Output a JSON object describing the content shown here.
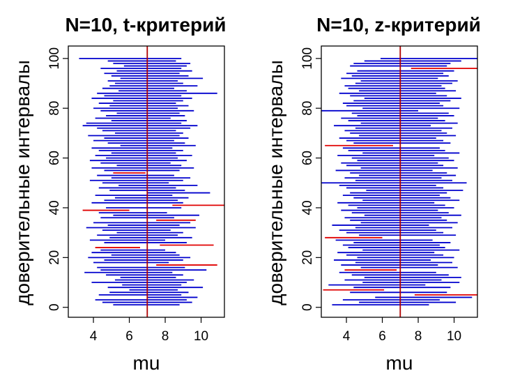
{
  "colors": {
    "covering": "#0000cd",
    "missing": "#e00000",
    "true_mean": "#b00000",
    "axis": "#000000"
  },
  "chart_data": [
    {
      "type": "interval",
      "title": "N=10, t-критерий",
      "xlabel": "mu",
      "ylabel": "доверительные интервалы",
      "xlim": [
        2.6,
        11.3
      ],
      "ylim": [
        -4,
        105
      ],
      "x_ticks": [
        4,
        6,
        8,
        10
      ],
      "y_ticks": [
        0,
        20,
        40,
        60,
        80,
        100
      ],
      "true_mean": 7,
      "grid": false,
      "intervals": [
        {
          "i": 1,
          "lo": 5.1,
          "hi": 8.8
        },
        {
          "i": 2,
          "lo": 4.5,
          "hi": 9.5
        },
        {
          "i": 3,
          "lo": 4.1,
          "hi": 9.2
        },
        {
          "i": 4,
          "lo": 7.0,
          "hi": 9.8
        },
        {
          "i": 5,
          "lo": 4.3,
          "hi": 8.9
        },
        {
          "i": 6,
          "lo": 4.9,
          "hi": 9.3
        },
        {
          "i": 7,
          "lo": 6.0,
          "hi": 8.7
        },
        {
          "i": 8,
          "lo": 4.8,
          "hi": 10.1
        },
        {
          "i": 9,
          "lo": 5.6,
          "hi": 8.9
        },
        {
          "i": 10,
          "lo": 3.9,
          "hi": 9.2
        },
        {
          "i": 11,
          "lo": 5.2,
          "hi": 9.6
        },
        {
          "i": 12,
          "lo": 5.5,
          "hi": 8.6
        },
        {
          "i": 13,
          "lo": 4.7,
          "hi": 9.0
        },
        {
          "i": 14,
          "lo": 3.5,
          "hi": 8.4
        },
        {
          "i": 15,
          "lo": 4.4,
          "hi": 10.3
        },
        {
          "i": 16,
          "lo": 4.2,
          "hi": 9.1
        },
        {
          "i": 17,
          "lo": 7.5,
          "hi": 10.9
        },
        {
          "i": 18,
          "lo": 4.0,
          "hi": 8.2
        },
        {
          "i": 19,
          "lo": 4.6,
          "hi": 9.0
        },
        {
          "i": 20,
          "lo": 3.7,
          "hi": 9.4
        },
        {
          "i": 21,
          "lo": 5.0,
          "hi": 8.8
        },
        {
          "i": 22,
          "lo": 3.9,
          "hi": 8.6
        },
        {
          "i": 23,
          "lo": 4.4,
          "hi": 8.0
        },
        {
          "i": 24,
          "lo": 4.1,
          "hi": 6.6
        },
        {
          "i": 25,
          "lo": 7.7,
          "hi": 10.7
        },
        {
          "i": 26,
          "lo": 4.6,
          "hi": 9.2
        },
        {
          "i": 27,
          "lo": 3.8,
          "hi": 8.0
        },
        {
          "i": 28,
          "lo": 4.9,
          "hi": 9.5
        },
        {
          "i": 29,
          "lo": 4.2,
          "hi": 8.7
        },
        {
          "i": 30,
          "lo": 5.3,
          "hi": 9.0
        },
        {
          "i": 31,
          "lo": 4.5,
          "hi": 8.3
        },
        {
          "i": 32,
          "lo": 3.6,
          "hi": 9.7
        },
        {
          "i": 33,
          "lo": 4.8,
          "hi": 8.8
        },
        {
          "i": 34,
          "lo": 4.0,
          "hi": 9.4
        },
        {
          "i": 35,
          "lo": 7.5,
          "hi": 9.7
        },
        {
          "i": 36,
          "lo": 4.4,
          "hi": 8.5
        },
        {
          "i": 37,
          "lo": 5.1,
          "hi": 9.9
        },
        {
          "i": 38,
          "lo": 4.3,
          "hi": 8.1
        },
        {
          "i": 39,
          "lo": 3.4,
          "hi": 6.0
        },
        {
          "i": 40,
          "lo": 4.7,
          "hi": 8.9
        },
        {
          "i": 41,
          "lo": 8.4,
          "hi": 11.3
        },
        {
          "i": 42,
          "lo": 3.9,
          "hi": 9.0
        },
        {
          "i": 43,
          "lo": 4.6,
          "hi": 8.7
        },
        {
          "i": 44,
          "lo": 5.2,
          "hi": 9.3
        },
        {
          "i": 45,
          "lo": 4.1,
          "hi": 8.4
        },
        {
          "i": 46,
          "lo": 7.0,
          "hi": 10.5
        },
        {
          "i": 47,
          "lo": 4.9,
          "hi": 9.1
        },
        {
          "i": 48,
          "lo": 4.3,
          "hi": 8.6
        },
        {
          "i": 49,
          "lo": 5.4,
          "hi": 9.8
        },
        {
          "i": 50,
          "lo": 4.5,
          "hi": 8.2
        },
        {
          "i": 51,
          "lo": 3.8,
          "hi": 9.0
        },
        {
          "i": 52,
          "lo": 5.0,
          "hi": 9.4
        },
        {
          "i": 53,
          "lo": 4.2,
          "hi": 8.5
        },
        {
          "i": 54,
          "lo": 5.1,
          "hi": 6.9
        },
        {
          "i": 55,
          "lo": 4.6,
          "hi": 8.8
        },
        {
          "i": 56,
          "lo": 3.9,
          "hi": 9.6
        },
        {
          "i": 57,
          "lo": 5.3,
          "hi": 8.9
        },
        {
          "i": 58,
          "lo": 4.4,
          "hi": 8.3
        },
        {
          "i": 59,
          "lo": 3.8,
          "hi": 9.2
        },
        {
          "i": 60,
          "lo": 4.7,
          "hi": 8.7
        },
        {
          "i": 61,
          "lo": 4.1,
          "hi": 9.5
        },
        {
          "i": 62,
          "lo": 5.0,
          "hi": 8.6
        },
        {
          "i": 63,
          "lo": 4.3,
          "hi": 9.0
        },
        {
          "i": 64,
          "lo": 3.9,
          "hi": 8.4
        },
        {
          "i": 65,
          "lo": 5.5,
          "hi": 9.7
        },
        {
          "i": 66,
          "lo": 4.8,
          "hi": 9.1
        },
        {
          "i": 67,
          "lo": 4.0,
          "hi": 8.5
        },
        {
          "i": 68,
          "lo": 4.6,
          "hi": 9.3
        },
        {
          "i": 69,
          "lo": 3.7,
          "hi": 8.8
        },
        {
          "i": 70,
          "lo": 5.2,
          "hi": 9.0
        },
        {
          "i": 71,
          "lo": 4.5,
          "hi": 8.6
        },
        {
          "i": 72,
          "lo": 4.2,
          "hi": 9.4
        },
        {
          "i": 73,
          "lo": 3.4,
          "hi": 9.8
        },
        {
          "i": 74,
          "lo": 3.6,
          "hi": 8.9
        },
        {
          "i": 75,
          "lo": 5.0,
          "hi": 9.2
        },
        {
          "i": 76,
          "lo": 4.1,
          "hi": 8.3
        },
        {
          "i": 77,
          "lo": 4.7,
          "hi": 9.1
        },
        {
          "i": 78,
          "lo": 5.3,
          "hi": 8.8
        },
        {
          "i": 79,
          "lo": 4.4,
          "hi": 9.6
        },
        {
          "i": 80,
          "lo": 4.0,
          "hi": 8.7
        },
        {
          "i": 81,
          "lo": 4.9,
          "hi": 9.3
        },
        {
          "i": 82,
          "lo": 4.3,
          "hi": 8.6
        },
        {
          "i": 83,
          "lo": 5.1,
          "hi": 9.0
        },
        {
          "i": 84,
          "lo": 3.9,
          "hi": 9.5
        },
        {
          "i": 85,
          "lo": 4.6,
          "hi": 8.9
        },
        {
          "i": 86,
          "lo": 4.2,
          "hi": 10.9
        },
        {
          "i": 87,
          "lo": 5.4,
          "hi": 9.2
        },
        {
          "i": 88,
          "lo": 4.5,
          "hi": 8.5
        },
        {
          "i": 89,
          "lo": 4.9,
          "hi": 9.8
        },
        {
          "i": 90,
          "lo": 5.2,
          "hi": 9.0
        },
        {
          "i": 91,
          "lo": 4.8,
          "hi": 8.7
        },
        {
          "i": 92,
          "lo": 5.5,
          "hi": 10.1
        },
        {
          "i": 93,
          "lo": 5.0,
          "hi": 9.3
        },
        {
          "i": 94,
          "lo": 4.6,
          "hi": 8.8
        },
        {
          "i": 95,
          "lo": 5.3,
          "hi": 9.5
        },
        {
          "i": 96,
          "lo": 4.4,
          "hi": 8.9
        },
        {
          "i": 97,
          "lo": 5.7,
          "hi": 9.2
        },
        {
          "i": 98,
          "lo": 5.1,
          "hi": 9.4
        },
        {
          "i": 99,
          "lo": 4.8,
          "hi": 8.6
        },
        {
          "i": 100,
          "lo": 3.2,
          "hi": 8.9
        }
      ]
    },
    {
      "type": "interval",
      "title": "N=10, z-критерий",
      "xlabel": "mu",
      "ylabel": "доверительные интервалы",
      "xlim": [
        2.6,
        11.3
      ],
      "ylim": [
        -4,
        105
      ],
      "x_ticks": [
        4,
        6,
        8,
        10
      ],
      "y_ticks": [
        0,
        20,
        40,
        60,
        80,
        100
      ],
      "true_mean": 7,
      "grid": false,
      "intervals": [
        {
          "i": 1,
          "lo": 3.2,
          "hi": 8.6
        },
        {
          "i": 2,
          "lo": 4.7,
          "hi": 10.1
        },
        {
          "i": 3,
          "lo": 3.8,
          "hi": 9.2
        },
        {
          "i": 4,
          "lo": 5.6,
          "hi": 11.0
        },
        {
          "i": 5,
          "lo": 7.8,
          "hi": 11.3
        },
        {
          "i": 6,
          "lo": 4.2,
          "hi": 9.6
        },
        {
          "i": 7,
          "lo": 2.7,
          "hi": 6.1
        },
        {
          "i": 8,
          "lo": 4.4,
          "hi": 9.8
        },
        {
          "i": 9,
          "lo": 3.0,
          "hi": 8.4
        },
        {
          "i": 10,
          "lo": 4.9,
          "hi": 10.3
        },
        {
          "i": 11,
          "lo": 3.9,
          "hi": 9.3
        },
        {
          "i": 12,
          "lo": 5.0,
          "hi": 10.4
        },
        {
          "i": 13,
          "lo": 4.3,
          "hi": 9.7
        },
        {
          "i": 14,
          "lo": 3.6,
          "hi": 9.0
        },
        {
          "i": 15,
          "lo": 3.9,
          "hi": 6.8
        },
        {
          "i": 16,
          "lo": 4.8,
          "hi": 10.2
        },
        {
          "i": 17,
          "lo": 3.7,
          "hi": 9.1
        },
        {
          "i": 18,
          "lo": 4.5,
          "hi": 9.9
        },
        {
          "i": 19,
          "lo": 3.3,
          "hi": 8.7
        },
        {
          "i": 20,
          "lo": 4.6,
          "hi": 10.0
        },
        {
          "i": 21,
          "lo": 4.0,
          "hi": 9.4
        },
        {
          "i": 22,
          "lo": 3.5,
          "hi": 8.9
        },
        {
          "i": 23,
          "lo": 4.9,
          "hi": 10.3
        },
        {
          "i": 24,
          "lo": 4.1,
          "hi": 9.5
        },
        {
          "i": 25,
          "lo": 3.8,
          "hi": 9.2
        },
        {
          "i": 26,
          "lo": 4.4,
          "hi": 9.8
        },
        {
          "i": 27,
          "lo": 3.4,
          "hi": 8.8
        },
        {
          "i": 28,
          "lo": 2.8,
          "hi": 6.0
        },
        {
          "i": 29,
          "lo": 4.7,
          "hi": 10.1
        },
        {
          "i": 30,
          "lo": 4.0,
          "hi": 9.4
        },
        {
          "i": 31,
          "lo": 3.6,
          "hi": 9.0
        },
        {
          "i": 32,
          "lo": 4.5,
          "hi": 9.9
        },
        {
          "i": 33,
          "lo": 3.2,
          "hi": 8.6
        },
        {
          "i": 34,
          "lo": 4.8,
          "hi": 10.2
        },
        {
          "i": 35,
          "lo": 4.2,
          "hi": 9.6
        },
        {
          "i": 36,
          "lo": 3.9,
          "hi": 9.3
        },
        {
          "i": 37,
          "lo": 5.0,
          "hi": 10.4
        },
        {
          "i": 38,
          "lo": 4.3,
          "hi": 9.7
        },
        {
          "i": 39,
          "lo": 3.7,
          "hi": 9.1
        },
        {
          "i": 40,
          "lo": 4.6,
          "hi": 10.0
        },
        {
          "i": 41,
          "lo": 4.1,
          "hi": 9.5
        },
        {
          "i": 42,
          "lo": 3.5,
          "hi": 8.9
        },
        {
          "i": 43,
          "lo": 4.9,
          "hi": 10.3
        },
        {
          "i": 44,
          "lo": 4.4,
          "hi": 9.8
        },
        {
          "i": 45,
          "lo": 3.8,
          "hi": 9.2
        },
        {
          "i": 46,
          "lo": 4.2,
          "hi": 9.6
        },
        {
          "i": 47,
          "lo": 5.1,
          "hi": 10.5
        },
        {
          "i": 48,
          "lo": 4.0,
          "hi": 9.4
        },
        {
          "i": 49,
          "lo": 3.6,
          "hi": 9.0
        },
        {
          "i": 50,
          "lo": 2.6,
          "hi": 10.7
        },
        {
          "i": 51,
          "lo": 4.5,
          "hi": 9.9
        },
        {
          "i": 52,
          "lo": 3.9,
          "hi": 9.3
        },
        {
          "i": 53,
          "lo": 4.7,
          "hi": 10.1
        },
        {
          "i": 54,
          "lo": 4.2,
          "hi": 9.6
        },
        {
          "i": 55,
          "lo": 3.4,
          "hi": 8.8
        },
        {
          "i": 56,
          "lo": 4.8,
          "hi": 10.2
        },
        {
          "i": 57,
          "lo": 4.0,
          "hi": 9.4
        },
        {
          "i": 58,
          "lo": 3.7,
          "hi": 9.1
        },
        {
          "i": 59,
          "lo": 4.6,
          "hi": 10.0
        },
        {
          "i": 60,
          "lo": 4.3,
          "hi": 9.7
        },
        {
          "i": 61,
          "lo": 3.5,
          "hi": 8.9
        },
        {
          "i": 62,
          "lo": 4.9,
          "hi": 10.3
        },
        {
          "i": 63,
          "lo": 4.1,
          "hi": 9.5
        },
        {
          "i": 64,
          "lo": 3.8,
          "hi": 9.2
        },
        {
          "i": 65,
          "lo": 2.8,
          "hi": 6.6
        },
        {
          "i": 66,
          "lo": 4.4,
          "hi": 9.8
        },
        {
          "i": 67,
          "lo": 4.0,
          "hi": 9.4
        },
        {
          "i": 68,
          "lo": 3.6,
          "hi": 9.0
        },
        {
          "i": 69,
          "lo": 4.7,
          "hi": 10.1
        },
        {
          "i": 70,
          "lo": 4.2,
          "hi": 9.6
        },
        {
          "i": 71,
          "lo": 3.9,
          "hi": 9.3
        },
        {
          "i": 72,
          "lo": 4.5,
          "hi": 9.9
        },
        {
          "i": 73,
          "lo": 3.3,
          "hi": 8.7
        },
        {
          "i": 74,
          "lo": 4.8,
          "hi": 10.2
        },
        {
          "i": 75,
          "lo": 4.1,
          "hi": 9.5
        },
        {
          "i": 76,
          "lo": 3.7,
          "hi": 9.1
        },
        {
          "i": 77,
          "lo": 4.6,
          "hi": 10.0
        },
        {
          "i": 78,
          "lo": 4.3,
          "hi": 9.7
        },
        {
          "i": 79,
          "lo": 2.6,
          "hi": 8.0
        },
        {
          "i": 80,
          "lo": 4.9,
          "hi": 10.3
        },
        {
          "i": 81,
          "lo": 4.0,
          "hi": 9.4
        },
        {
          "i": 82,
          "lo": 3.8,
          "hi": 9.2
        },
        {
          "i": 83,
          "lo": 4.4,
          "hi": 9.8
        },
        {
          "i": 84,
          "lo": 5.0,
          "hi": 10.4
        },
        {
          "i": 85,
          "lo": 4.2,
          "hi": 9.6
        },
        {
          "i": 86,
          "lo": 3.6,
          "hi": 9.0
        },
        {
          "i": 87,
          "lo": 4.7,
          "hi": 10.1
        },
        {
          "i": 88,
          "lo": 4.1,
          "hi": 9.5
        },
        {
          "i": 89,
          "lo": 3.9,
          "hi": 9.3
        },
        {
          "i": 90,
          "lo": 4.5,
          "hi": 9.9
        },
        {
          "i": 91,
          "lo": 4.8,
          "hi": 10.2
        },
        {
          "i": 92,
          "lo": 3.7,
          "hi": 9.1
        },
        {
          "i": 93,
          "lo": 4.3,
          "hi": 9.7
        },
        {
          "i": 94,
          "lo": 4.0,
          "hi": 9.4
        },
        {
          "i": 95,
          "lo": 4.6,
          "hi": 10.0
        },
        {
          "i": 96,
          "lo": 7.6,
          "hi": 11.3
        },
        {
          "i": 97,
          "lo": 4.2,
          "hi": 9.6
        },
        {
          "i": 98,
          "lo": 4.4,
          "hi": 9.8
        },
        {
          "i": 99,
          "lo": 5.0,
          "hi": 10.4
        },
        {
          "i": 100,
          "lo": 5.9,
          "hi": 11.3
        }
      ]
    }
  ]
}
